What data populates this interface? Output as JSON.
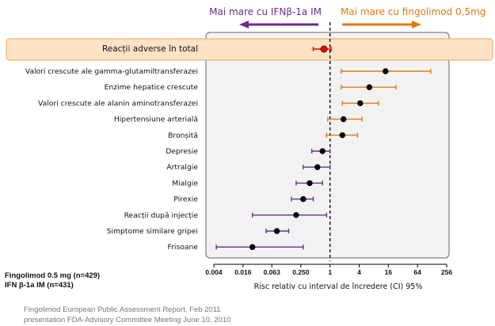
{
  "chart_data": {
    "type": "forest",
    "x_scale": "log2",
    "xlim": [
      0.004,
      256
    ],
    "x_ticks": [
      "0.004",
      "0.016",
      "0.063",
      "0.250",
      "1",
      "4",
      "16",
      "64",
      "256"
    ],
    "xlabel": "Risc relativ cu interval de încredere (CI) 95%",
    "reference_line": 1,
    "direction_left": "Mai mare cu IFNβ-1a IM",
    "direction_right": "Mai mare cu fingolimod 0,5mg",
    "rows": [
      {
        "label": "Reacții adverse în total",
        "est": 0.75,
        "lo": 0.45,
        "hi": 1.05,
        "color": "#ee0000",
        "highlight": true
      },
      {
        "label": "Valori crescute ale gamma-glutamiltransferazei",
        "est": 14,
        "lo": 1.7,
        "hi": 120,
        "color": "#e07a10"
      },
      {
        "label": "Enzime hepatice crescute",
        "est": 6.5,
        "lo": 1.7,
        "hi": 23,
        "color": "#e07a10"
      },
      {
        "label": "Valori crescute ale alanin aminotransferazei",
        "est": 4.2,
        "lo": 1.8,
        "hi": 10,
        "color": "#e07a10"
      },
      {
        "label": "Hipertensiune arterială",
        "est": 1.9,
        "lo": 0.9,
        "hi": 4.6,
        "color": "#e07a10"
      },
      {
        "label": "Bronșită",
        "est": 1.8,
        "lo": 0.85,
        "hi": 3.7,
        "color": "#e07a10"
      },
      {
        "label": "Depresie",
        "est": 0.7,
        "lo": 0.42,
        "hi": 1.0,
        "color": "#6a2c91"
      },
      {
        "label": "Artralgie",
        "est": 0.55,
        "lo": 0.28,
        "hi": 1.0,
        "color": "#6a2c91"
      },
      {
        "label": "Mialgie",
        "est": 0.38,
        "lo": 0.2,
        "hi": 0.7,
        "color": "#6a2c91"
      },
      {
        "label": "Pirexie",
        "est": 0.28,
        "lo": 0.16,
        "hi": 0.45,
        "color": "#6a2c91"
      },
      {
        "label": "Reacții după injecție",
        "est": 0.2,
        "lo": 0.025,
        "hi": 0.85,
        "color": "#6a2c91"
      },
      {
        "label": "Simptome similare gripei",
        "est": 0.08,
        "lo": 0.048,
        "hi": 0.14,
        "color": "#6a2c91"
      },
      {
        "label": "Frisoane",
        "est": 0.025,
        "lo": 0.0045,
        "hi": 0.28,
        "color": "#6a2c91"
      }
    ]
  },
  "legend": {
    "line1": "Fingolimod 0.5 mg (n=429)",
    "line2": "IFN β-1a IM (n=431)"
  },
  "source": {
    "line1": "Fingolimod European Public Assessment Report, Feb 2011",
    "line2": "presentation FDA-Advisory Committee Meeting June 10, 2010"
  },
  "colors": {
    "purple": "#6a2c91",
    "orange": "#e07a10",
    "red": "#ee0000",
    "highlight_bg": "#fde2c4",
    "highlight_border": "#f2a35a",
    "panel_bg": "#f2f2f2"
  }
}
